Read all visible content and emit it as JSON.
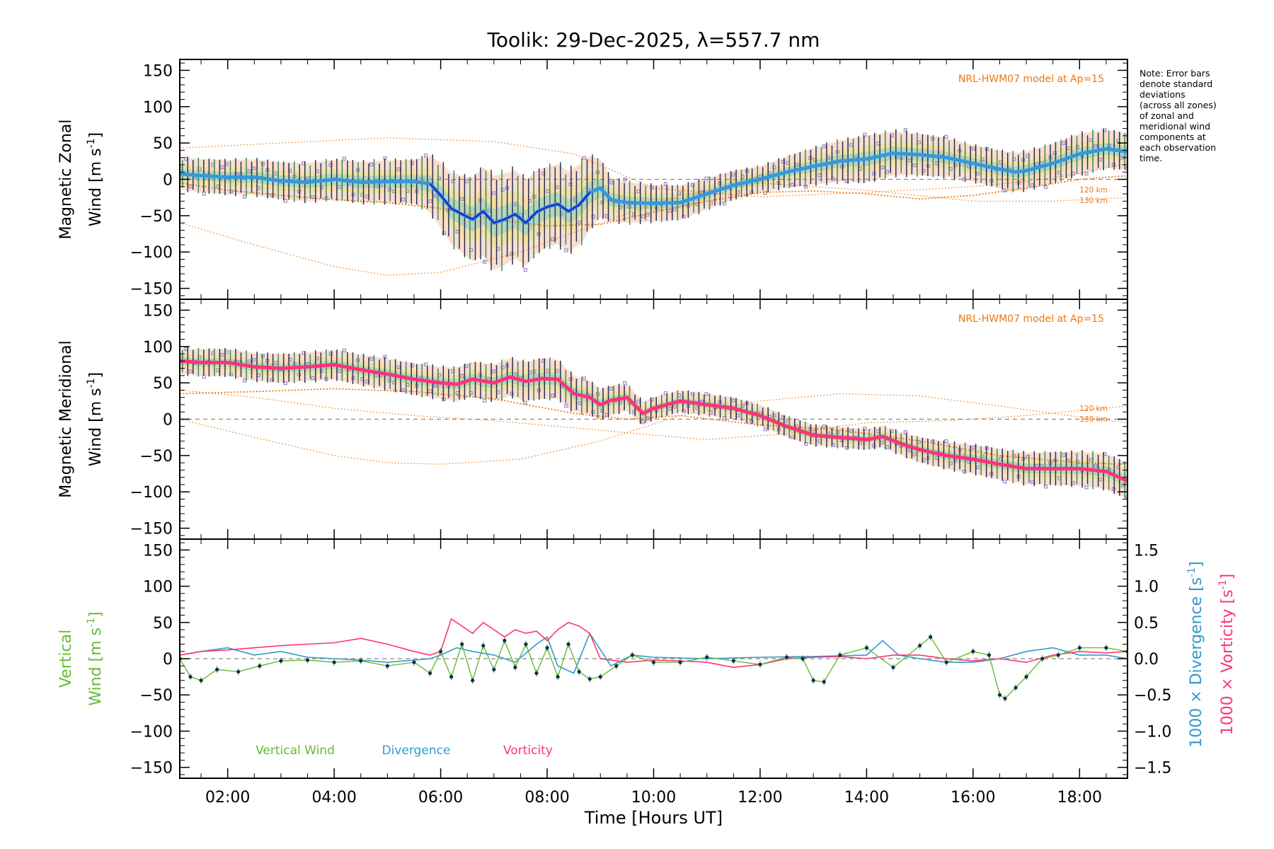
{
  "colors": {
    "zonal_line": "#3399dd",
    "zonal_line_dark": "#1a2ecc",
    "meridional_line": "#ff3377",
    "vertical": "#66bb33",
    "divergence": "#3399cc",
    "vorticity": "#ff3377",
    "model": "#ee7711",
    "errorbar": "#223355",
    "zone_points": "#9988cc",
    "band_orange": "#f4a070",
    "band_yellow": "#e8e070",
    "band_cyan": "#70c8d8"
  },
  "chart_data": [
    {
      "type": "line",
      "panel": "zonal",
      "title": "Toolik: 29-Dec-2025, λ=557.7 nm",
      "ylabel_line1": "Magnetic Zonal",
      "ylabel_line2": "Wind [m s",
      "ylabel_sup": "-1",
      "ylabel_close": "]",
      "ylim": [
        -165,
        165
      ],
      "yticks": [
        150,
        100,
        50,
        0,
        -50,
        -100,
        -150
      ],
      "xlim": [
        1.1,
        18.9
      ],
      "model_label": "NRL-HWM07 model at Ap=15",
      "model_alt_labels": [
        "120 km",
        "130 km"
      ],
      "series": [
        {
          "name": "zonal wind",
          "x": [
            1.1,
            1.5,
            2.0,
            2.5,
            3.0,
            3.5,
            4.0,
            4.5,
            5.0,
            5.5,
            5.8,
            6.0,
            6.2,
            6.4,
            6.6,
            6.8,
            7.0,
            7.2,
            7.4,
            7.6,
            7.8,
            8.0,
            8.2,
            8.4,
            8.6,
            8.8,
            9.0,
            9.2,
            9.5,
            10.0,
            10.5,
            11.0,
            11.5,
            12.0,
            12.5,
            13.0,
            13.5,
            14.0,
            14.5,
            15.0,
            15.5,
            16.0,
            16.5,
            16.8,
            17.0,
            17.5,
            18.0,
            18.5,
            18.9
          ],
          "y": [
            8,
            5,
            3,
            3,
            -2,
            -4,
            0,
            -4,
            -3,
            -3,
            -6,
            -22,
            -40,
            -48,
            -55,
            -44,
            -60,
            -55,
            -48,
            -60,
            -45,
            -38,
            -34,
            -44,
            -35,
            -18,
            -12,
            -28,
            -32,
            -33,
            -32,
            -20,
            -8,
            0,
            10,
            18,
            25,
            28,
            36,
            34,
            30,
            22,
            14,
            10,
            12,
            22,
            35,
            42,
            38
          ]
        },
        {
          "name": "error half-width",
          "x": [
            1.1,
            5.5,
            6.0,
            7.0,
            8.0,
            8.7,
            9.2,
            10.0,
            12.0,
            14.0,
            16.0,
            18.0,
            18.9
          ],
          "y": [
            22,
            30,
            45,
            65,
            55,
            55,
            30,
            25,
            18,
            32,
            25,
            28,
            25
          ]
        },
        {
          "name": "model 120 km",
          "x": [
            1.1,
            3.0,
            5.0,
            7.0,
            8.5,
            10.0,
            12.0,
            14.0,
            16.0,
            17.0,
            18.0,
            18.9
          ],
          "y": [
            43,
            50,
            57,
            52,
            35,
            -12,
            -24,
            -18,
            -10,
            -3,
            8,
            22
          ]
        },
        {
          "name": "model 130 km",
          "x": [
            1.1,
            2.5,
            4.0,
            5.0,
            6.0,
            7.5,
            9.0,
            10.5,
            12.0,
            14.0,
            16.0,
            17.5,
            18.9
          ],
          "y": [
            -60,
            -90,
            -120,
            -132,
            -128,
            -100,
            -60,
            -22,
            -5,
            -15,
            -30,
            -30,
            -25
          ]
        },
        {
          "name": "model thick",
          "x": [
            1.1,
            2.0,
            3.0,
            4.0,
            5.0,
            6.0,
            7.0,
            8.0,
            9.0,
            10.0,
            11.0,
            12.0,
            13.0,
            14.0,
            15.0,
            16.0,
            17.0,
            18.0,
            18.9
          ],
          "y": [
            -5,
            -15,
            -22,
            -28,
            -32,
            -40,
            -55,
            -64,
            -62,
            -45,
            -30,
            -18,
            -16,
            -20,
            -27,
            -22,
            -12,
            0,
            5
          ]
        }
      ]
    },
    {
      "type": "line",
      "panel": "meridional",
      "ylabel_line1": "Magnetic Meridional",
      "ylabel_line2": "Wind [m s",
      "ylabel_sup": "-1",
      "ylabel_close": "]",
      "ylim": [
        -165,
        165
      ],
      "yticks": [
        150,
        100,
        50,
        0,
        -50,
        -100,
        -150
      ],
      "xlim": [
        1.1,
        18.9
      ],
      "model_label": "NRL-HWM07 model at Ap=15",
      "model_alt_labels": [
        "120 km",
        "130 km"
      ],
      "series": [
        {
          "name": "meridional wind",
          "x": [
            1.1,
            1.5,
            2.0,
            2.5,
            3.0,
            3.5,
            4.0,
            4.5,
            5.0,
            5.5,
            6.0,
            6.3,
            6.6,
            7.0,
            7.3,
            7.6,
            7.9,
            8.2,
            8.5,
            8.8,
            9.0,
            9.2,
            9.5,
            9.8,
            10.0,
            10.5,
            11.0,
            11.5,
            12.0,
            12.5,
            13.0,
            13.5,
            14.0,
            14.3,
            14.7,
            15.0,
            15.5,
            16.0,
            16.5,
            17.0,
            17.5,
            18.0,
            18.5,
            18.9
          ],
          "y": [
            80,
            78,
            78,
            72,
            70,
            72,
            75,
            68,
            62,
            55,
            50,
            48,
            55,
            50,
            58,
            52,
            56,
            55,
            35,
            30,
            20,
            26,
            30,
            8,
            15,
            25,
            20,
            15,
            5,
            -10,
            -22,
            -25,
            -28,
            -24,
            -35,
            -42,
            -50,
            -55,
            -62,
            -68,
            -68,
            -68,
            -72,
            -85
          ]
        },
        {
          "name": "error half-width",
          "x": [
            1.1,
            6.0,
            8.0,
            10.0,
            14.0,
            16.0,
            18.9
          ],
          "y": [
            18,
            22,
            28,
            15,
            14,
            20,
            25
          ]
        },
        {
          "name": "model 120 km",
          "x": [
            1.1,
            2.5,
            4.0,
            5.5,
            7.0,
            8.5,
            10.0,
            11.0,
            12.5,
            14.0,
            15.5,
            17.0,
            18.0,
            18.9
          ],
          "y": [
            40,
            30,
            15,
            5,
            -2,
            -12,
            -22,
            -28,
            -20,
            -5,
            -2,
            5,
            12,
            18
          ]
        },
        {
          "name": "model 130 km",
          "x": [
            1.1,
            2.5,
            4.0,
            5.0,
            6.0,
            7.5,
            9.0,
            10.5,
            12.0,
            13.5,
            15.0,
            16.5,
            18.0,
            18.9
          ],
          "y": [
            0,
            -25,
            -50,
            -60,
            -62,
            -55,
            -30,
            5,
            25,
            35,
            32,
            18,
            3,
            -5
          ]
        },
        {
          "name": "model thick",
          "x": [
            1.1,
            2.5,
            4.0,
            5.5,
            7.0,
            8.5,
            9.5,
            10.5,
            12.0,
            13.5,
            15.0,
            16.5,
            18.0,
            18.9
          ],
          "y": [
            35,
            38,
            42,
            38,
            28,
            8,
            0,
            5,
            -8,
            -15,
            -30,
            -50,
            -60,
            -62
          ]
        }
      ]
    },
    {
      "type": "line",
      "panel": "vertical",
      "ylabel_line1": "Vertical",
      "ylabel_line2": "Wind [m s",
      "ylabel_sup": "-1",
      "ylabel_close": "]",
      "ylim": [
        -165,
        165
      ],
      "yticks": [
        150,
        100,
        50,
        0,
        -50,
        -100,
        -150
      ],
      "y2lim": [
        -1.65,
        1.65
      ],
      "y2ticks": [
        1.5,
        1.0,
        0.5,
        0.0,
        -0.5,
        -1.0,
        -1.5
      ],
      "y2_tick_labels": [
        "1.5",
        "1.0",
        "0.5",
        "0.0",
        "−0.5",
        "−1.0",
        "−1.5"
      ],
      "y2label_div_main": "1000 × Divergence [s",
      "y2label_vor_main": "1000 × Vorticity [s",
      "y2label_sup": "-1",
      "y2label_close": "]",
      "xlim": [
        1.1,
        18.9
      ],
      "xticks": [
        2,
        4,
        6,
        8,
        10,
        12,
        14,
        16,
        18
      ],
      "xtick_labels": [
        "02:00",
        "04:00",
        "06:00",
        "08:00",
        "10:00",
        "12:00",
        "14:00",
        "16:00",
        "18:00"
      ],
      "xlabel": "Time [Hours UT]",
      "legend": [
        "Vertical Wind",
        "Divergence",
        "Vorticity"
      ],
      "series": [
        {
          "name": "Vertical Wind",
          "x": [
            1.1,
            1.3,
            1.5,
            1.8,
            2.2,
            2.6,
            3.0,
            3.5,
            4.0,
            4.5,
            5.0,
            5.5,
            5.8,
            6.0,
            6.2,
            6.4,
            6.6,
            6.8,
            7.0,
            7.2,
            7.4,
            7.6,
            7.8,
            8.0,
            8.2,
            8.4,
            8.6,
            8.8,
            9.0,
            9.3,
            9.6,
            10.0,
            10.5,
            11.0,
            11.5,
            12.0,
            12.5,
            12.8,
            13.0,
            13.2,
            13.5,
            14.0,
            14.5,
            15.0,
            15.2,
            15.5,
            16.0,
            16.3,
            16.5,
            16.6,
            16.8,
            17.0,
            17.3,
            17.6,
            18.0,
            18.5,
            18.9
          ],
          "y": [
            0,
            -25,
            -30,
            -15,
            -18,
            -10,
            -3,
            -2,
            -5,
            -3,
            -10,
            -5,
            -20,
            10,
            -25,
            20,
            -30,
            18,
            -15,
            25,
            -12,
            20,
            -20,
            15,
            -25,
            20,
            -18,
            -28,
            -25,
            -10,
            5,
            -5,
            -5,
            2,
            -3,
            -8,
            2,
            0,
            -30,
            -32,
            5,
            15,
            -12,
            18,
            30,
            -5,
            10,
            5,
            -50,
            -55,
            -40,
            -25,
            0,
            5,
            15,
            15,
            10
          ]
        },
        {
          "name": "Divergence",
          "x": [
            1.1,
            1.5,
            2.0,
            2.5,
            3.0,
            3.5,
            4.0,
            4.5,
            5.0,
            5.5,
            5.8,
            6.0,
            6.3,
            6.6,
            7.0,
            7.4,
            7.8,
            8.0,
            8.2,
            8.5,
            8.8,
            9.2,
            9.6,
            10.0,
            11.0,
            12.0,
            13.0,
            14.0,
            14.3,
            14.6,
            15.0,
            15.5,
            16.0,
            16.5,
            17.0,
            17.5,
            18.0,
            18.5,
            18.9
          ],
          "y": [
            0.05,
            0.1,
            0.15,
            0.05,
            0.1,
            0.02,
            0.0,
            -0.02,
            -0.05,
            -0.02,
            0.0,
            0.05,
            0.15,
            0.1,
            0.05,
            -0.05,
            0.2,
            0.3,
            -0.1,
            -0.2,
            0.35,
            -0.1,
            0.05,
            0.02,
            0.0,
            0.02,
            0.03,
            0.05,
            0.25,
            0.05,
            0.0,
            -0.05,
            -0.05,
            0.0,
            0.1,
            0.15,
            0.05,
            0.05,
            0.0
          ]
        },
        {
          "name": "Vorticity",
          "x": [
            1.1,
            1.5,
            2.0,
            2.5,
            3.0,
            3.5,
            4.0,
            4.5,
            5.0,
            5.5,
            5.8,
            6.0,
            6.2,
            6.4,
            6.6,
            6.8,
            7.0,
            7.2,
            7.4,
            7.6,
            7.8,
            8.0,
            8.2,
            8.4,
            8.6,
            8.8,
            9.0,
            9.5,
            10.0,
            10.5,
            11.0,
            11.5,
            12.0,
            12.5,
            13.0,
            13.5,
            14.0,
            14.5,
            15.0,
            15.5,
            16.0,
            16.5,
            17.0,
            17.5,
            18.0,
            18.5,
            18.9
          ],
          "y": [
            0.05,
            0.1,
            0.12,
            0.15,
            0.18,
            0.2,
            0.22,
            0.28,
            0.2,
            0.1,
            0.05,
            0.1,
            0.55,
            0.45,
            0.35,
            0.5,
            0.4,
            0.3,
            0.4,
            0.35,
            0.38,
            0.25,
            0.4,
            0.5,
            0.45,
            0.35,
            0.0,
            -0.05,
            -0.02,
            -0.03,
            -0.05,
            -0.12,
            -0.08,
            0.0,
            0.02,
            0.03,
            0.0,
            0.05,
            0.05,
            0.0,
            -0.03,
            0.0,
            -0.05,
            0.05,
            0.1,
            0.08,
            0.1
          ]
        }
      ]
    }
  ],
  "note": [
    "Note: Error bars",
    "denote standard",
    "deviations",
    "(across all zones)",
    "of zonal and",
    "meridional wind",
    "components at",
    "each observation",
    "time."
  ]
}
